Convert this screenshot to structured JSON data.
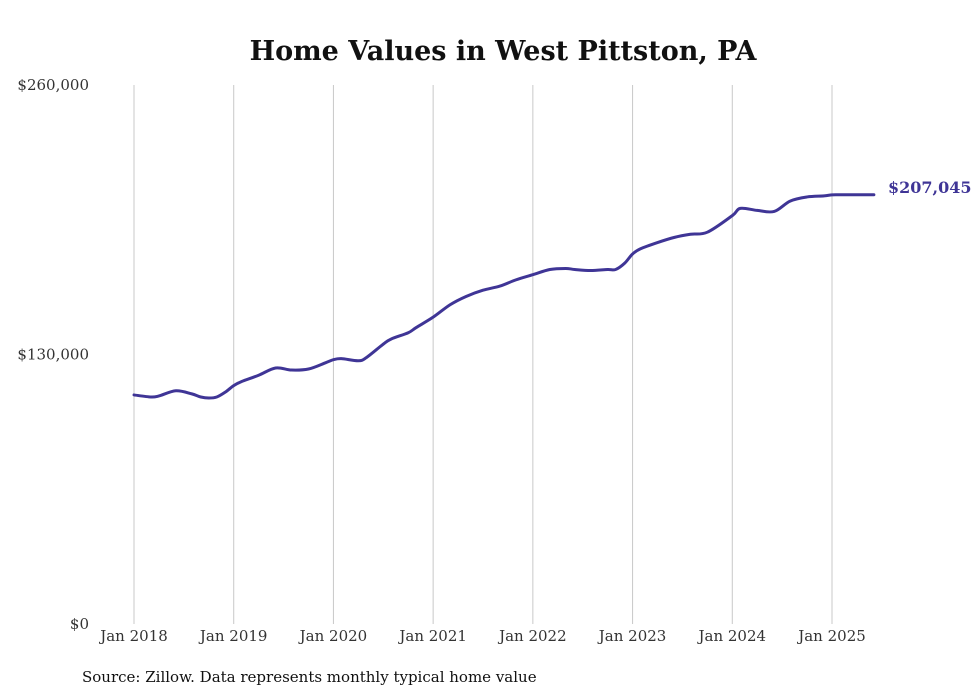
{
  "chart_data": {
    "type": "line",
    "title": "Home Values in West Pittston, PA",
    "xlabel": "",
    "ylabel": "",
    "ylim": [
      0,
      260000
    ],
    "y_ticks": [
      {
        "value": 0,
        "label": "$0"
      },
      {
        "value": 130000,
        "label": "$130,000"
      },
      {
        "value": 260000,
        "label": "$260,000"
      }
    ],
    "x_ticks": [
      {
        "value": 2018,
        "label": "Jan 2018"
      },
      {
        "value": 2019,
        "label": "Jan 2019"
      },
      {
        "value": 2020,
        "label": "Jan 2020"
      },
      {
        "value": 2021,
        "label": "Jan 2021"
      },
      {
        "value": 2022,
        "label": "Jan 2022"
      },
      {
        "value": 2023,
        "label": "Jan 2023"
      },
      {
        "value": 2024,
        "label": "Jan 2024"
      },
      {
        "value": 2025,
        "label": "Jan 2025"
      }
    ],
    "xlim": [
      2018,
      2025.42
    ],
    "grid": {
      "vertical": true,
      "horizontal": false
    },
    "line_color": "#3f3596",
    "end_label": "$207,045",
    "series": [
      {
        "x": [
          2018.0,
          2018.17,
          2018.25,
          2018.42,
          2018.58,
          2018.67,
          2018.75,
          2018.83,
          2018.92,
          2019.0,
          2019.08,
          2019.25,
          2019.42,
          2019.58,
          2019.75,
          2019.92,
          2020.0,
          2020.08,
          2020.25,
          2020.33,
          2020.5,
          2020.58,
          2020.75,
          2020.83,
          2021.0,
          2021.17,
          2021.33,
          2021.5,
          2021.67,
          2021.83,
          2022.0,
          2022.17,
          2022.33,
          2022.42,
          2022.58,
          2022.75,
          2022.83,
          2022.92,
          2023.0,
          2023.08,
          2023.25,
          2023.42,
          2023.58,
          2023.75,
          2024.0,
          2024.08,
          2024.25,
          2024.42,
          2024.58,
          2024.75,
          2024.92,
          2025.0,
          2025.08,
          2025.25,
          2025.42
        ],
        "y": [
          110500,
          109500,
          110000,
          112500,
          111000,
          109500,
          109000,
          109500,
          112000,
          115000,
          117000,
          120000,
          123500,
          122500,
          123000,
          126000,
          127500,
          128000,
          127000,
          128500,
          135000,
          137500,
          140500,
          143000,
          148000,
          154000,
          158000,
          161000,
          163000,
          166000,
          168500,
          171000,
          171500,
          171000,
          170500,
          171000,
          171000,
          174000,
          178500,
          181000,
          184000,
          186500,
          188000,
          189000,
          197000,
          200500,
          199500,
          199000,
          204000,
          206000,
          206500,
          207000,
          207045,
          207045,
          207045
        ]
      }
    ]
  },
  "source_text": "Source: Zillow. Data represents monthly typical home value"
}
